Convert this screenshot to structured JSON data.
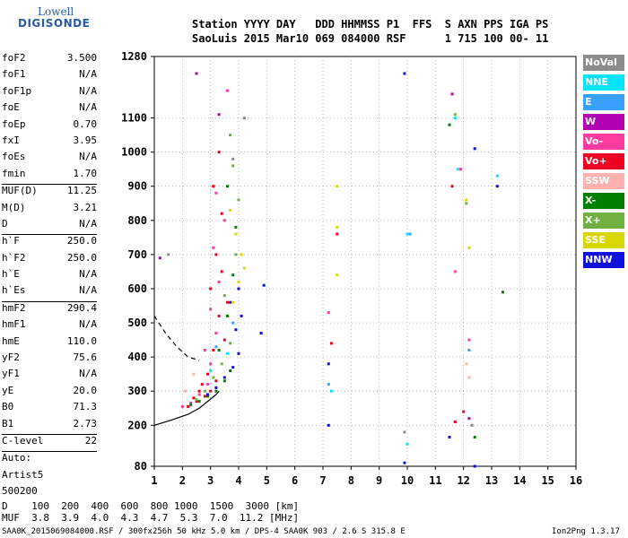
{
  "logo": {
    "line1": "Lowell",
    "line2": "DIGISONDE"
  },
  "header": {
    "line1": "Station YYYY DAY   DDD HHMMSS P1  FFS  S AXN PPS IGA PS",
    "line2": "SaoLuis 2015 Mar10 069 084000 RSF      1 715 100 00- 11"
  },
  "params": [
    {
      "label": "foF2",
      "value": "3.500"
    },
    {
      "label": "foF1",
      "value": "N/A"
    },
    {
      "label": "foF1p",
      "value": "N/A"
    },
    {
      "label": "foE",
      "value": "N/A"
    },
    {
      "label": "foEp",
      "value": "0.70"
    },
    {
      "label": "fxI",
      "value": "3.95"
    },
    {
      "label": "foEs",
      "value": "N/A"
    },
    {
      "label": "fmin",
      "value": "1.70"
    },
    {
      "sep": true
    },
    {
      "label": "MUF(D)",
      "value": "11.25"
    },
    {
      "label": "M(D)",
      "value": "3.21"
    },
    {
      "label": "D",
      "value": "N/A"
    },
    {
      "sep": true
    },
    {
      "label": "h`F",
      "value": "250.0"
    },
    {
      "label": "h`F2",
      "value": "250.0"
    },
    {
      "label": "h`E",
      "value": "N/A"
    },
    {
      "label": "h`Es",
      "value": "N/A"
    },
    {
      "sep": true
    },
    {
      "label": "hmF2",
      "value": "290.4"
    },
    {
      "label": "hmF1",
      "value": "N/A"
    },
    {
      "label": "hmE",
      "value": "110.0"
    },
    {
      "label": "yF2",
      "value": "75.6"
    },
    {
      "label": "yF1",
      "value": "N/A"
    },
    {
      "label": "yE",
      "value": "20.0"
    },
    {
      "label": "B0",
      "value": "71.3"
    },
    {
      "label": "B1",
      "value": "2.73"
    },
    {
      "sep": true
    },
    {
      "label": "C-level",
      "value": "22"
    },
    {
      "sep": true
    },
    {
      "label": "Auto:",
      "value": ""
    },
    {
      "label": "Artist5",
      "value": ""
    },
    {
      "label": "500200",
      "value": ""
    }
  ],
  "legend": [
    {
      "label": "NoVal",
      "color": "#8c8c8c"
    },
    {
      "label": "NNE",
      "color": "#00e5ff"
    },
    {
      "label": "E",
      "color": "#3aa0ff"
    },
    {
      "label": "W",
      "color": "#b000b0"
    },
    {
      "label": "Vo-",
      "color": "#ff3aa0"
    },
    {
      "label": "Vo+",
      "color": "#ee0022"
    },
    {
      "label": "SSW",
      "color": "#ffb0b0"
    },
    {
      "label": "X-",
      "color": "#008000"
    },
    {
      "label": "X+",
      "color": "#70b040"
    },
    {
      "label": "SSE",
      "color": "#d8d800"
    },
    {
      "label": "NNW",
      "color": "#1010dd"
    }
  ],
  "bottom": {
    "dline": "D    100  200  400  600  800 1000  1500  3000 [km]",
    "mufline": "MUF  3.8  3.9  4.0  4.3  4.7  5.3  7.0  11.2 [MHz]"
  },
  "footer": {
    "left": "SAA0K_2015069084000.RSF / 300fx256h 50 kHz 5.0 km / DPS-4 SAA0K 903 / 2.6 S 315.8 E",
    "right": "Ion2Png 1.3.17"
  },
  "chart_data": {
    "type": "scatter",
    "title": "",
    "xlabel": "",
    "ylabel": "",
    "xlim": [
      1,
      16
    ],
    "ylim": [
      80,
      1280
    ],
    "xticks": [
      1,
      2,
      3,
      4,
      5,
      6,
      7,
      8,
      9,
      10,
      11,
      12,
      13,
      14,
      15,
      16
    ],
    "yticks": [
      80,
      200,
      300,
      400,
      500,
      600,
      700,
      800,
      900,
      1000,
      1100,
      1280
    ],
    "grid": true,
    "series": [
      {
        "name": "Vo+",
        "color": "#ee0022",
        "points": [
          [
            2.2,
            255
          ],
          [
            2.5,
            270
          ],
          [
            2.8,
            285
          ],
          [
            3.0,
            300
          ],
          [
            3.2,
            330
          ],
          [
            2.6,
            300
          ],
          [
            2.9,
            350
          ],
          [
            3.1,
            420
          ],
          [
            3.3,
            520
          ],
          [
            3.0,
            600
          ],
          [
            3.2,
            700
          ],
          [
            3.4,
            820
          ],
          [
            3.1,
            900
          ],
          [
            3.3,
            1000
          ],
          [
            2.4,
            280
          ],
          [
            2.7,
            320
          ],
          [
            3.5,
            450
          ],
          [
            3.6,
            560
          ],
          [
            3.4,
            650
          ],
          [
            7.3,
            440
          ],
          [
            7.5,
            760
          ],
          [
            11.7,
            210
          ],
          [
            11.6,
            900
          ],
          [
            12.0,
            240
          ]
        ]
      },
      {
        "name": "Vo-",
        "color": "#ff3aa0",
        "points": [
          [
            2.0,
            255
          ],
          [
            2.3,
            265
          ],
          [
            2.6,
            290
          ],
          [
            2.9,
            320
          ],
          [
            3.0,
            380
          ],
          [
            2.8,
            420
          ],
          [
            3.2,
            470
          ],
          [
            3.0,
            540
          ],
          [
            3.3,
            620
          ],
          [
            3.1,
            720
          ],
          [
            3.5,
            800
          ],
          [
            3.2,
            880
          ],
          [
            3.6,
            1180
          ],
          [
            7.2,
            530
          ],
          [
            11.7,
            650
          ],
          [
            11.9,
            950
          ],
          [
            12.2,
            450
          ]
        ]
      },
      {
        "name": "X-",
        "color": "#008000",
        "points": [
          [
            2.3,
            260
          ],
          [
            2.6,
            270
          ],
          [
            2.9,
            285
          ],
          [
            3.2,
            300
          ],
          [
            3.5,
            330
          ],
          [
            3.7,
            360
          ],
          [
            3.3,
            420
          ],
          [
            3.6,
            520
          ],
          [
            3.8,
            640
          ],
          [
            3.9,
            780
          ],
          [
            3.6,
            900
          ],
          [
            11.5,
            1080
          ],
          [
            12.4,
            165
          ],
          [
            13.4,
            590
          ]
        ]
      },
      {
        "name": "X+",
        "color": "#70b040",
        "points": [
          [
            2.5,
            275
          ],
          [
            2.8,
            300
          ],
          [
            3.1,
            340
          ],
          [
            3.4,
            380
          ],
          [
            3.7,
            440
          ],
          [
            3.5,
            580
          ],
          [
            3.9,
            700
          ],
          [
            4.0,
            860
          ],
          [
            3.8,
            960
          ],
          [
            3.7,
            1050
          ],
          [
            11.7,
            1110
          ],
          [
            12.1,
            850
          ]
        ]
      },
      {
        "name": "NNW",
        "color": "#1010dd",
        "points": [
          [
            2.9,
            290
          ],
          [
            3.2,
            310
          ],
          [
            3.5,
            340
          ],
          [
            3.8,
            370
          ],
          [
            4.0,
            410
          ],
          [
            3.9,
            480
          ],
          [
            4.1,
            520
          ],
          [
            3.7,
            560
          ],
          [
            4.0,
            600
          ],
          [
            4.8,
            470
          ],
          [
            4.9,
            610
          ],
          [
            7.2,
            380
          ],
          [
            7.2,
            200
          ],
          [
            9.9,
            1230
          ],
          [
            9.9,
            90
          ],
          [
            11.5,
            165
          ],
          [
            12.4,
            1010
          ],
          [
            12.4,
            80
          ],
          [
            13.2,
            900
          ]
        ]
      },
      {
        "name": "SSE",
        "color": "#d8d800",
        "points": [
          [
            3.8,
            560
          ],
          [
            4.0,
            620
          ],
          [
            4.2,
            660
          ],
          [
            4.1,
            700
          ],
          [
            3.9,
            760
          ],
          [
            3.7,
            830
          ],
          [
            7.5,
            900
          ],
          [
            7.5,
            780
          ],
          [
            7.5,
            640
          ],
          [
            12.1,
            860
          ],
          [
            12.2,
            720
          ]
        ]
      },
      {
        "name": "NNE",
        "color": "#00e5ff",
        "points": [
          [
            3.0,
            360
          ],
          [
            3.6,
            410
          ],
          [
            7.3,
            300
          ],
          [
            10.0,
            760
          ],
          [
            11.7,
            1100
          ],
          [
            11.8,
            950
          ],
          [
            13.2,
            930
          ],
          [
            10.0,
            145
          ]
        ]
      },
      {
        "name": "E",
        "color": "#3aa0ff",
        "points": [
          [
            3.2,
            430
          ],
          [
            3.8,
            500
          ],
          [
            7.2,
            320
          ],
          [
            10.1,
            760
          ],
          [
            12.2,
            420
          ]
        ]
      },
      {
        "name": "W",
        "color": "#b000b0",
        "points": [
          [
            1.2,
            690
          ],
          [
            2.5,
            1230
          ],
          [
            3.3,
            1110
          ],
          [
            11.6,
            1170
          ],
          [
            12.2,
            220
          ]
        ]
      },
      {
        "name": "SSW",
        "color": "#ffb0b0",
        "points": [
          [
            2.1,
            300
          ],
          [
            2.4,
            350
          ],
          [
            12.2,
            340
          ],
          [
            12.1,
            380
          ]
        ]
      },
      {
        "name": "NoVal",
        "color": "#8c8c8c",
        "points": [
          [
            1.5,
            700
          ],
          [
            3.8,
            980
          ],
          [
            4.2,
            1100
          ],
          [
            9.9,
            180
          ],
          [
            12.3,
            200
          ]
        ]
      }
    ],
    "profile_solid": [
      [
        1.0,
        200
      ],
      [
        1.6,
        215
      ],
      [
        2.2,
        232
      ],
      [
        2.6,
        250
      ],
      [
        2.9,
        270
      ],
      [
        3.2,
        290
      ],
      [
        3.3,
        300
      ]
    ],
    "profile_dashed": [
      [
        1.0,
        520
      ],
      [
        1.4,
        470
      ],
      [
        1.8,
        430
      ],
      [
        2.2,
        400
      ],
      [
        2.6,
        390
      ]
    ]
  }
}
